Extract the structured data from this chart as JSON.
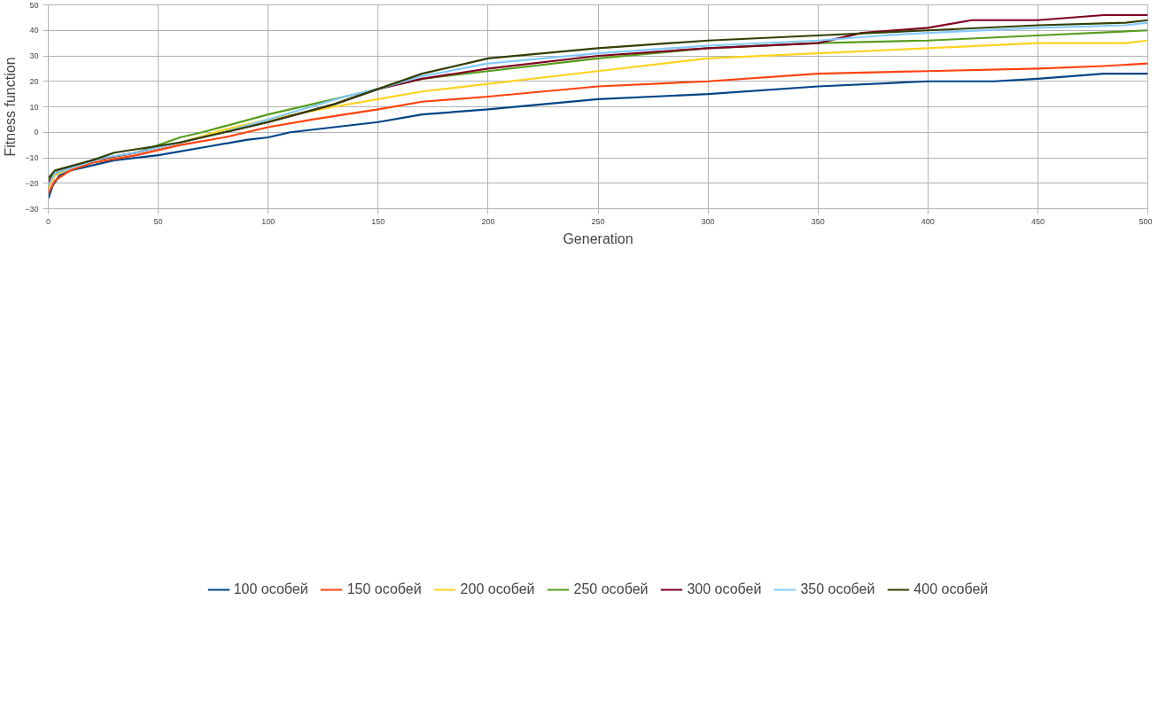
{
  "chart_data": {
    "type": "line",
    "xlabel": "Generation",
    "ylabel": "Fitness function",
    "xlim": [
      0,
      500
    ],
    "ylim": [
      -30,
      50
    ],
    "xticks": [
      0,
      50,
      100,
      150,
      200,
      250,
      300,
      350,
      400,
      450,
      500
    ],
    "yticks": [
      -30,
      -20,
      -10,
      0,
      10,
      20,
      30,
      40,
      50
    ],
    "grid": true,
    "legend": "bottom",
    "marker": "none",
    "line_style": "solid",
    "series": [
      {
        "name": "100 особей",
        "color": "#004586",
        "x": [
          0,
          2,
          5,
          10,
          20,
          30,
          50,
          70,
          90,
          100,
          110,
          130,
          150,
          170,
          200,
          250,
          300,
          350,
          400,
          430,
          450,
          480,
          500
        ],
        "values": [
          -26,
          -21,
          -17,
          -15,
          -13,
          -11,
          -9,
          -6,
          -3,
          -2,
          0,
          2,
          4,
          7,
          9,
          13,
          15,
          18,
          20,
          20,
          21,
          23,
          23
        ]
      },
      {
        "name": "150 особей",
        "color": "#ff420e",
        "x": [
          0,
          3,
          10,
          20,
          40,
          60,
          80,
          100,
          120,
          150,
          170,
          200,
          250,
          300,
          350,
          400,
          450,
          480,
          500
        ],
        "values": [
          -24,
          -19,
          -15,
          -12,
          -9,
          -5,
          -2,
          2,
          5,
          9,
          12,
          14,
          18,
          20,
          23,
          24,
          25,
          26,
          27
        ]
      },
      {
        "name": "200 особей",
        "color": "#ffd320",
        "x": [
          0,
          3,
          10,
          20,
          40,
          60,
          80,
          100,
          130,
          150,
          170,
          200,
          250,
          300,
          350,
          400,
          450,
          490,
          500
        ],
        "values": [
          -22,
          -17,
          -14,
          -11,
          -8,
          -4,
          1,
          5,
          10,
          13,
          16,
          19,
          24,
          29,
          31,
          33,
          35,
          35,
          36
        ]
      },
      {
        "name": "250 особей",
        "color": "#579d1c",
        "x": [
          0,
          3,
          10,
          20,
          40,
          60,
          70,
          100,
          130,
          150,
          170,
          200,
          250,
          300,
          350,
          400,
          450,
          500
        ],
        "values": [
          -19,
          -16,
          -14,
          -11,
          -8,
          -2,
          0,
          7,
          13,
          17,
          21,
          24,
          29,
          33,
          35,
          36,
          38,
          40
        ]
      },
      {
        "name": "300 особей",
        "color": "#7e0021",
        "x": [
          0,
          3,
          20,
          40,
          60,
          80,
          100,
          130,
          150,
          170,
          200,
          250,
          300,
          350,
          370,
          400,
          420,
          450,
          480,
          500
        ],
        "values": [
          -20,
          -16,
          -11,
          -8,
          -4,
          0,
          4,
          11,
          17,
          21,
          25,
          30,
          33,
          35,
          39,
          41,
          44,
          44,
          46,
          46
        ]
      },
      {
        "name": "350 особей",
        "color": "#83caff",
        "x": [
          0,
          3,
          25,
          40,
          65,
          80,
          100,
          135,
          150,
          170,
          200,
          250,
          300,
          350,
          380,
          400,
          450,
          490,
          500
        ],
        "values": [
          -21,
          -16,
          -10,
          -8,
          -3,
          0,
          5,
          14,
          17,
          22,
          27,
          31,
          34,
          36,
          38,
          39,
          41,
          42,
          43
        ]
      },
      {
        "name": "400 особей",
        "color": "#314004",
        "x": [
          0,
          3,
          20,
          30,
          60,
          80,
          100,
          130,
          150,
          170,
          200,
          250,
          300,
          350,
          400,
          450,
          490,
          500
        ],
        "values": [
          -18,
          -15,
          -11,
          -8,
          -4,
          0,
          4,
          11,
          17,
          23,
          29,
          33,
          36,
          38,
          40,
          42,
          43,
          44
        ]
      }
    ]
  }
}
